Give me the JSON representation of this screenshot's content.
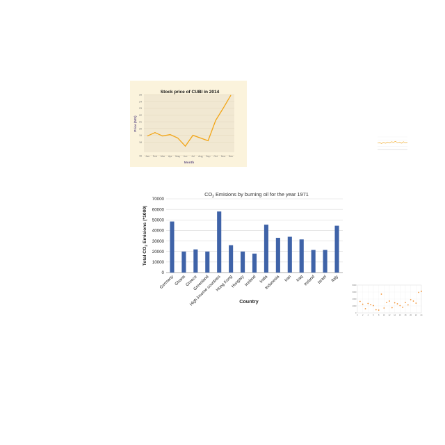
{
  "colors": {
    "stock_line": "#f2a516",
    "stock_plot_bg": "#f1e8d2",
    "stock_panel_bg": "#fbf3dc",
    "bar": "#3f63a8",
    "scatter": "#f28e2b",
    "grid": "#d9d9d9"
  },
  "chart_data": [
    {
      "type": "line",
      "title": "Stock price of CUBI in 2014",
      "xlabel": "Month",
      "ylabel": "Price (NIS)",
      "categories": [
        "Jan",
        "Feb",
        "Mar",
        "Apr",
        "May",
        "Jun",
        "Jul",
        "Aug",
        "Sep",
        "Oct",
        "Nov",
        "Dec"
      ],
      "values": [
        18.9,
        19.4,
        18.9,
        19.1,
        18.6,
        17.4,
        19.0,
        18.6,
        18.2,
        21.2,
        23.0,
        24.9
      ],
      "yticks": [
        16,
        18,
        19,
        20,
        21,
        22,
        23,
        24,
        25
      ],
      "ylim": [
        16.5,
        25
      ],
      "grid": true
    },
    {
      "type": "line",
      "values": [
        0.52,
        0.55,
        0.48,
        0.57,
        0.5,
        0.6,
        0.54,
        0.62,
        0.58,
        0.65,
        0.55,
        0.6,
        0.5,
        0.62,
        0.55,
        0.58
      ],
      "ylim": [
        0,
        1
      ],
      "grid": true
    },
    {
      "type": "bar",
      "title_pre": "CO",
      "title_sub": "2",
      "title_post": " Emisions by burning oil for the year 1971",
      "xlabel": "Country",
      "ylabel_pre": "Total CO",
      "ylabel_sub": "2",
      "ylabel_post": " Emisions (*1000)",
      "categories": [
        "Germany",
        "Ghana",
        "Greece",
        "Greenland",
        "High income countries",
        "Hong Kong",
        "Hungary",
        "Iceland",
        "India",
        "Indonesia",
        "Iran",
        "Iraq",
        "Ireland",
        "Israel",
        "Italy"
      ],
      "values": [
        48500,
        20000,
        22000,
        20000,
        58000,
        26000,
        20000,
        18000,
        45500,
        33000,
        34000,
        31500,
        21500,
        21500,
        44500
      ],
      "yticks": [
        0,
        10000,
        20000,
        30000,
        40000,
        50000,
        60000,
        70000
      ],
      "ylim": [
        0,
        70000
      ],
      "grid": true
    },
    {
      "type": "scatter",
      "x": [
        1,
        2,
        3,
        4,
        5,
        6,
        7,
        8,
        9,
        10,
        11,
        12,
        13,
        14,
        15,
        16,
        17,
        18,
        19,
        20,
        21,
        22,
        23,
        24
      ],
      "y": [
        3300,
        2500,
        1200,
        2700,
        2400,
        2100,
        900,
        800,
        5400,
        1400,
        3000,
        3400,
        1500,
        2900,
        2600,
        2100,
        1600,
        3000,
        2300,
        3800,
        3400,
        2800,
        5900,
        6200
      ],
      "xticks": [
        0,
        2,
        4,
        6,
        8,
        10,
        12,
        14,
        16,
        18,
        20,
        22,
        24
      ],
      "yticks": [
        0,
        2000,
        4000,
        6000,
        8000
      ],
      "ylim": [
        0,
        8000
      ],
      "xlim": [
        0,
        24
      ],
      "grid": true
    }
  ]
}
